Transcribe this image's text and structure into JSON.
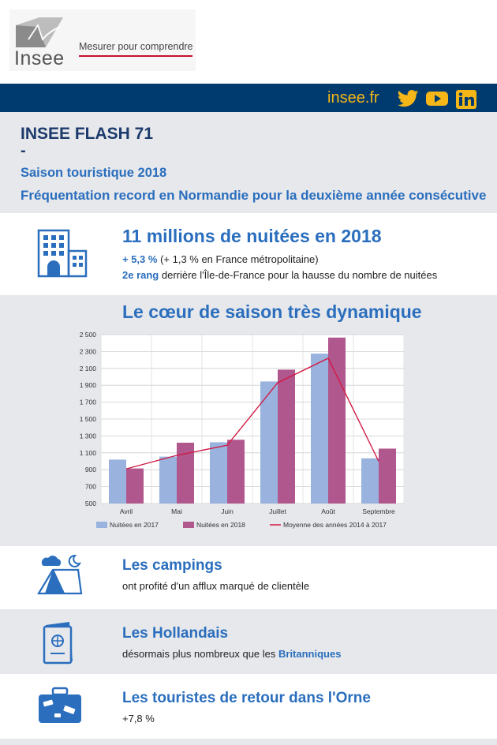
{
  "header": {
    "logo_text": "Insee",
    "tagline": "Mesurer pour comprendre"
  },
  "bar": {
    "link": "insee.fr",
    "icons": [
      "twitter-icon",
      "youtube-icon",
      "linkedin-icon"
    ],
    "color": "#003b6f",
    "link_color": "#f5b617"
  },
  "title": {
    "line1": "INSEE FLASH 71",
    "dash": "-",
    "line3": "Saison touristique 2018",
    "line4": "Fréquentation record en Normandie pour la deuxième année consécutive"
  },
  "nuitees": {
    "heading": "11 millions de nuitées en 2018",
    "stat": "+ 5,3 %",
    "stat_rest": " (+ 1,3 % en France métropolitaine)",
    "rank": "2e rang",
    "rank_rest": " derrière l'Île-de-France pour la hausse du nombre de nuitées"
  },
  "chart_section": {
    "heading": "Le cœur de saison très dynamique"
  },
  "chart_data": {
    "type": "bar",
    "categories": [
      "Avril",
      "Mai",
      "Juin",
      "Juillet",
      "Août",
      "Septembre"
    ],
    "series": [
      {
        "name": "Nuitées en 2017",
        "type": "bar",
        "color": "#99b3de",
        "values": [
          1020,
          1055,
          1225,
          1945,
          2275,
          1035
        ]
      },
      {
        "name": "Nuitées en 2018",
        "type": "bar",
        "color": "#b0578d",
        "values": [
          915,
          1220,
          1255,
          2085,
          2465,
          1150
        ]
      },
      {
        "name": "Moyenne des années 2014 à 2017",
        "type": "line",
        "color": "#d21a45",
        "values": [
          910,
          1070,
          1190,
          1930,
          2220,
          1000
        ]
      }
    ],
    "yticks": [
      "2 500",
      "2 300",
      "2 100",
      "1 900",
      "1 700",
      "1 500",
      "1 300",
      "1 100",
      "900",
      "700",
      "500"
    ],
    "ylim": [
      500,
      2500
    ],
    "grid": true,
    "legend": "bottom"
  },
  "campings": {
    "heading": "Les campings",
    "text": "ont profité d'un afflux marqué de clientèle"
  },
  "hollandais": {
    "heading": "Les Hollandais",
    "text": "désormais plus nombreux que les ",
    "highlight": "Britanniques"
  },
  "orne": {
    "heading": "Les touristes de retour dans l'Orne",
    "text": "+7,8 %"
  }
}
